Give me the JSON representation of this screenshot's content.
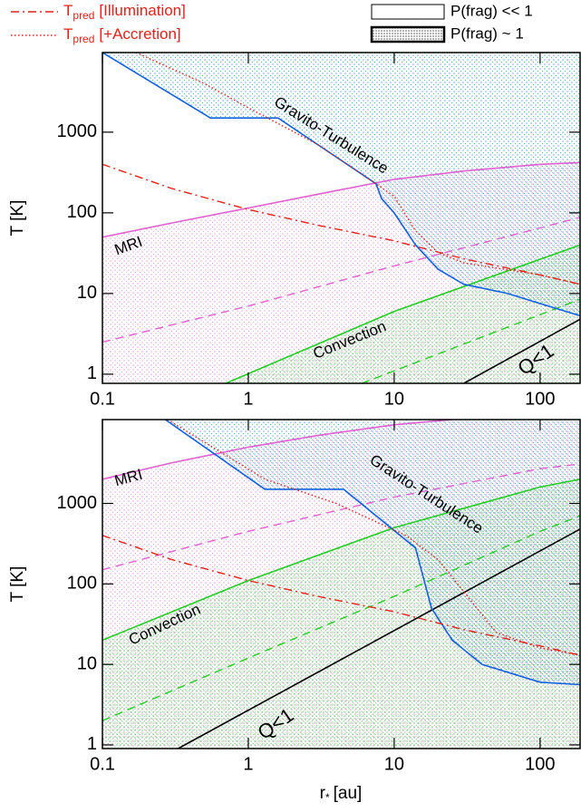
{
  "legend": {
    "lines": [
      {
        "base": "T",
        "sub": "pred",
        "label": "[Illumination]",
        "color": "#e32119",
        "linestyle": "dashdot"
      },
      {
        "base": "T",
        "sub": "pred",
        "label": "[+Accretion]",
        "color": "#e32119",
        "linestyle": "dotted"
      }
    ],
    "regions": [
      {
        "label": "P(frag) << 1",
        "hatched": false
      },
      {
        "label": "P(frag) ~ 1",
        "hatched": true
      }
    ]
  },
  "chart_data": [
    {
      "type": "line",
      "ylabel": "T [K]",
      "xscale": "log",
      "yscale": "log",
      "xlim": [
        0.1,
        188
      ],
      "ylim": [
        0.77,
        9700
      ],
      "xticks": [
        {
          "value": 0.1,
          "label": "0.1"
        },
        1,
        10,
        100
      ],
      "yticks": [
        1,
        10,
        100,
        1000
      ],
      "series": [
        {
          "color": "#e060d0",
          "linestyle": "solid",
          "shade": "pink",
          "x": [
            0.1,
            0.3,
            1,
            3,
            10,
            30,
            100,
            188
          ],
          "values": [
            50,
            75,
            115,
            170,
            260,
            330,
            400,
            420
          ]
        },
        {
          "color": "#e060d0",
          "linestyle": "dashed",
          "x": [
            0.1,
            1,
            10,
            100,
            188
          ],
          "values": [
            2.5,
            7,
            22,
            65,
            88
          ]
        },
        {
          "color": "#22cc22",
          "linestyle": "solid",
          "shade": "green",
          "x": [
            0.7,
            10,
            188
          ],
          "values": [
            0.77,
            6,
            40
          ]
        },
        {
          "color": "#22cc22",
          "linestyle": "dashed",
          "x": [
            6,
            188
          ],
          "values": [
            0.77,
            8.5
          ]
        },
        {
          "color": "#000000",
          "linestyle": "solid",
          "x": [
            30,
            188
          ],
          "values": [
            0.77,
            4.8
          ]
        },
        {
          "color": "#1060e0",
          "linestyle": "solid",
          "shade": "blue",
          "x": [
            0.1,
            0.55,
            1.6,
            7.5,
            8.2,
            10,
            14,
            20,
            30,
            60,
            100,
            188
          ],
          "values": [
            9700,
            1500,
            1500,
            230,
            150,
            100,
            40,
            20,
            13,
            10,
            7.5,
            5.3
          ]
        },
        {
          "color": "#e32119",
          "linestyle": "dashdot",
          "x": [
            0.1,
            0.3,
            1,
            3,
            10,
            30,
            100,
            188
          ],
          "values": [
            400,
            200,
            110,
            70,
            45,
            27,
            17,
            13
          ]
        },
        {
          "color": "#e32119",
          "linestyle": "dotted",
          "x": [
            0.17,
            0.5,
            1,
            3,
            7,
            10,
            14,
            20,
            30,
            100,
            188
          ],
          "values": [
            9700,
            4000,
            2000,
            700,
            250,
            160,
            60,
            32,
            24,
            17,
            13
          ]
        }
      ],
      "annotations": [
        "Gravito-Turbulence",
        "MRI",
        "Convection",
        "Q<1"
      ]
    },
    {
      "type": "line",
      "ylabel": "T [K]",
      "xlabel": {
        "base": "r",
        "sub": "*",
        "label": "[au]"
      },
      "xscale": "log",
      "yscale": "log",
      "xlim": [
        0.1,
        188
      ],
      "ylim": [
        0.9,
        11000
      ],
      "xticks": [
        {
          "value": 0.1,
          "label": "0.1"
        },
        1,
        10,
        100
      ],
      "yticks": [
        1,
        10,
        100,
        1000
      ],
      "series": [
        {
          "color": "#e060d0",
          "linestyle": "solid",
          "shade": "pink",
          "x": [
            0.1,
            0.3,
            1,
            3,
            10,
            25
          ],
          "values": [
            2000,
            3200,
            5000,
            7000,
            9500,
            11000
          ]
        },
        {
          "color": "#e060d0",
          "linestyle": "dashed",
          "x": [
            0.1,
            1,
            10,
            100,
            188
          ],
          "values": [
            150,
            450,
            1200,
            2700,
            3100
          ]
        },
        {
          "color": "#22cc22",
          "linestyle": "solid",
          "shade": "green",
          "x": [
            0.1,
            1,
            10,
            100,
            188
          ],
          "values": [
            20,
            110,
            500,
            1600,
            2000
          ]
        },
        {
          "color": "#22cc22",
          "linestyle": "dashed",
          "x": [
            0.1,
            1,
            10,
            100,
            188
          ],
          "values": [
            2,
            12,
            70,
            450,
            700
          ]
        },
        {
          "color": "#000000",
          "linestyle": "solid",
          "x": [
            0.33,
            188
          ],
          "values": [
            0.9,
            480
          ]
        },
        {
          "color": "#1060e0",
          "linestyle": "solid",
          "shade": "blue",
          "x": [
            0.27,
            1.3,
            4.5,
            14,
            18,
            25,
            40,
            100,
            188
          ],
          "values": [
            11000,
            1500,
            1500,
            280,
            50,
            20,
            10,
            6,
            5.6
          ]
        },
        {
          "color": "#e32119",
          "linestyle": "dashdot",
          "x": [
            0.1,
            0.3,
            1,
            3,
            10,
            30,
            100,
            188
          ],
          "values": [
            400,
            200,
            110,
            70,
            45,
            27,
            17,
            13
          ]
        },
        {
          "color": "#e32119",
          "linestyle": "dotted",
          "x": [
            0.28,
            1.3,
            4,
            12,
            20,
            30,
            50,
            100,
            188
          ],
          "values": [
            11000,
            2000,
            1000,
            400,
            200,
            80,
            25,
            16,
            13
          ]
        }
      ],
      "annotations": [
        "Gravito-Turbulence",
        "MRI",
        "Convection",
        "Q<1"
      ]
    }
  ]
}
